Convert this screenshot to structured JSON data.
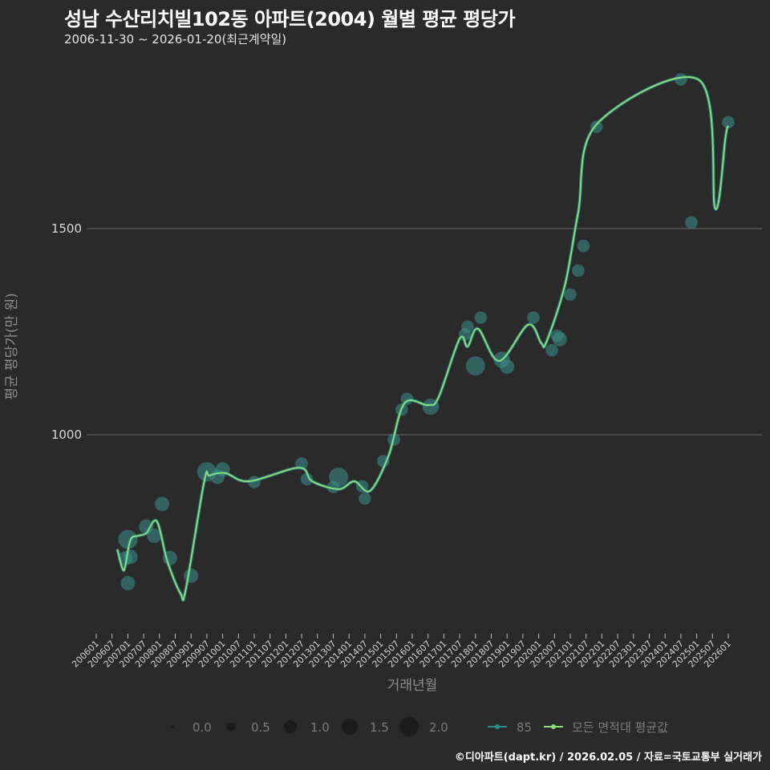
{
  "header": {
    "title": "성남 수산리치빌102동 아파트(2004) 월별 평균 평당가",
    "subtitle": "2006-11-30 ~ 2026-01-20(최근계약일)"
  },
  "footer": {
    "credit": "©디아파트(dapt.kr) / 2026.02.05 / 자료=국토교통부 실거래가"
  },
  "colors": {
    "background": "#2b2a2b",
    "gridline": "#6a6a6a",
    "series_85": "#2f8c8a",
    "series_85_point": "#3a8f8c",
    "series_all": "#8fe07a"
  },
  "chart_data": {
    "type": "line",
    "title": "성남 수산리치빌102동 아파트(2004) 월별 평균 평당가",
    "subtitle": "2006-11-30 ~ 2026-01-20(최근계약일)",
    "xlabel": "거래년월",
    "ylabel": "평균 평당가(만 원)",
    "ylim": [
      530,
      1990
    ],
    "y_ticks": [
      1000,
      1500
    ],
    "grid": true,
    "x_ticks": [
      "200601",
      "200607",
      "200701",
      "200707",
      "200801",
      "200807",
      "200901",
      "200907",
      "201001",
      "201007",
      "201101",
      "201107",
      "201201",
      "201207",
      "201301",
      "201307",
      "201401",
      "201407",
      "201501",
      "201507",
      "201601",
      "201607",
      "201701",
      "201707",
      "201801",
      "201807",
      "201901",
      "201907",
      "202001",
      "202007",
      "202101",
      "202107",
      "202201",
      "202207",
      "202301",
      "202307",
      "202401",
      "202407",
      "202501",
      "202507",
      "202601"
    ],
    "legend": {
      "size_title": "",
      "size_entries": [
        "0.0",
        "0.5",
        "1.0",
        "1.5",
        "2.0"
      ],
      "line_entries": [
        "85",
        "모든 면적대 평균값"
      ]
    },
    "series": [
      {
        "name": "모든 면적대 평균값",
        "x": [
          "2006-09",
          "2006-11",
          "2006-12",
          "2007-02",
          "2007-05",
          "2007-08",
          "2007-12",
          "2008-04",
          "2008-09",
          "2008-11",
          "2009-06",
          "2009-08",
          "2010-02",
          "2010-11",
          "2012-06",
          "2012-11",
          "2013-09",
          "2014-03",
          "2014-09",
          "2015-04",
          "2015-10",
          "2016-07",
          "2016-11",
          "2017-07",
          "2017-10",
          "2018-02",
          "2018-10",
          "2019-09",
          "2020-02",
          "2020-04",
          "2020-11",
          "2021-04",
          "2021-11",
          "2025-02",
          "2025-08",
          "2025-12",
          "2026-01"
        ],
        "values": [
          722,
          675,
          681,
          745,
          755,
          761,
          790,
          693,
          615,
          625,
          887,
          901,
          907,
          887,
          920,
          887,
          868,
          887,
          864,
          949,
          1076,
          1072,
          1091,
          1233,
          1214,
          1257,
          1179,
          1267,
          1222,
          1226,
          1364,
          1539,
          1753,
          1860,
          1549,
          1724,
          1749
        ]
      },
      {
        "name": "85",
        "points": [
          {
            "x": "2006-12",
            "y": 700,
            "size": 1.0
          },
          {
            "x": "2007-01",
            "y": 746,
            "size": 1.5
          },
          {
            "x": "2007-01",
            "y": 640,
            "size": 1.0
          },
          {
            "x": "2007-02",
            "y": 704,
            "size": 1.0
          },
          {
            "x": "2007-08",
            "y": 777,
            "size": 1.0
          },
          {
            "x": "2007-11",
            "y": 755,
            "size": 1.0
          },
          {
            "x": "2008-02",
            "y": 832,
            "size": 1.0
          },
          {
            "x": "2008-05",
            "y": 701,
            "size": 1.0
          },
          {
            "x": "2009-01",
            "y": 658,
            "size": 1.0
          },
          {
            "x": "2009-07",
            "y": 910,
            "size": 1.5
          },
          {
            "x": "2009-11",
            "y": 898,
            "size": 1.0
          },
          {
            "x": "2010-01",
            "y": 916,
            "size": 1.0
          },
          {
            "x": "2011-01",
            "y": 885,
            "size": 0.8
          },
          {
            "x": "2012-07",
            "y": 930,
            "size": 0.8
          },
          {
            "x": "2012-09",
            "y": 892,
            "size": 0.8
          },
          {
            "x": "2013-07",
            "y": 873,
            "size": 0.8
          },
          {
            "x": "2013-09",
            "y": 897,
            "size": 1.5
          },
          {
            "x": "2014-06",
            "y": 875,
            "size": 0.8
          },
          {
            "x": "2014-07",
            "y": 845,
            "size": 0.8
          },
          {
            "x": "2015-02",
            "y": 936,
            "size": 0.8
          },
          {
            "x": "2015-06",
            "y": 988,
            "size": 0.8
          },
          {
            "x": "2015-09",
            "y": 1061,
            "size": 0.8
          },
          {
            "x": "2015-11",
            "y": 1087,
            "size": 0.8
          },
          {
            "x": "2016-08",
            "y": 1068,
            "size": 1.2
          },
          {
            "x": "2017-09",
            "y": 1243,
            "size": 0.8
          },
          {
            "x": "2017-10",
            "y": 1262,
            "size": 0.8
          },
          {
            "x": "2018-01",
            "y": 1167,
            "size": 1.5
          },
          {
            "x": "2018-03",
            "y": 1284,
            "size": 0.8
          },
          {
            "x": "2018-11",
            "y": 1182,
            "size": 1.2
          },
          {
            "x": "2019-01",
            "y": 1165,
            "size": 1.0
          },
          {
            "x": "2019-11",
            "y": 1284,
            "size": 0.8
          },
          {
            "x": "2020-06",
            "y": 1205,
            "size": 0.8
          },
          {
            "x": "2020-08",
            "y": 1240,
            "size": 0.8
          },
          {
            "x": "2020-09",
            "y": 1232,
            "size": 1.0
          },
          {
            "x": "2021-01",
            "y": 1340,
            "size": 0.8
          },
          {
            "x": "2021-04",
            "y": 1398,
            "size": 0.8
          },
          {
            "x": "2021-06",
            "y": 1458,
            "size": 0.8
          },
          {
            "x": "2021-11",
            "y": 1747,
            "size": 0.8
          },
          {
            "x": "2024-07",
            "y": 1862,
            "size": 0.8
          },
          {
            "x": "2024-11",
            "y": 1515,
            "size": 0.8
          },
          {
            "x": "2026-01",
            "y": 1758,
            "size": 0.8
          }
        ]
      }
    ]
  }
}
